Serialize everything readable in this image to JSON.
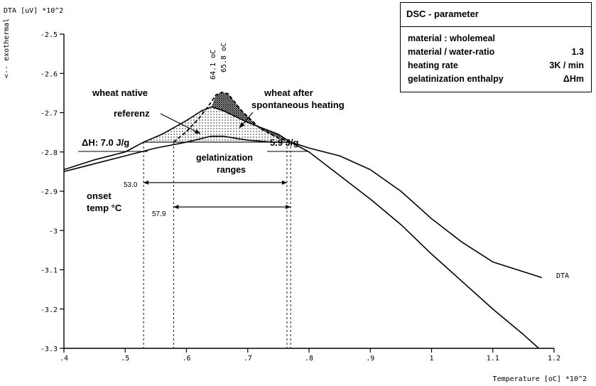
{
  "legend_box": {
    "title": "DSC - parameter",
    "rows": [
      {
        "label": "material : wholemeal",
        "value": ""
      },
      {
        "label": "material / water-ratio",
        "value": "1.3"
      },
      {
        "label": "heating rate",
        "value": "3K / min"
      },
      {
        "label": "gelatinization enthalpy",
        "value": "ΔHm"
      }
    ]
  },
  "annotations": {
    "wheat_native": "wheat native",
    "referenz": "referenz",
    "wheat_after_1": "wheat after",
    "wheat_after_2": "spontaneous heating",
    "dh_left": "ΔH: 7.0 J/g",
    "dh_right": "5.9 J/g",
    "gel_ranges_1": "gelatinization",
    "gel_ranges_2": "ranges",
    "onset_1": "onset",
    "onset_2": "temp °C",
    "onset_a": "53.0",
    "onset_b": "57.9",
    "peak_a": "64.1 oC",
    "peak_b": "65.8 oC",
    "series_label": "DTA"
  },
  "colors": {
    "line": "#000000",
    "background": "#ffffff"
  },
  "chart_data": {
    "type": "line",
    "title": "",
    "xlabel": "Temperature [oC] *10^2",
    "ylabel": "DTA [uV] *10^2",
    "ylabel_side": "<-- exothermal",
    "xlim": [
      0.4,
      1.2
    ],
    "ylim": [
      -3.3,
      -2.5
    ],
    "xticks": [
      0.4,
      0.5,
      0.6,
      0.7,
      0.8,
      0.9,
      1.0,
      1.1,
      1.2
    ],
    "xtick_labels": [
      ".4",
      ".5",
      ".6",
      ".7",
      ".8",
      ".9",
      "1",
      "1.1",
      "1.2"
    ],
    "yticks": [
      -2.5,
      -2.6,
      -2.7,
      -2.8,
      -2.9,
      -3.0,
      -3.1,
      -3.2,
      -3.3
    ],
    "ytick_labels": [
      "-2.5",
      "-2.6",
      "-2.7",
      "-2.8",
      "-2.9",
      "-3",
      "-3.1",
      "-3.2",
      "-3.3"
    ],
    "grid": false,
    "series": [
      {
        "name": "DTA",
        "x": [
          0.4,
          0.45,
          0.5,
          0.53,
          0.56,
          0.6,
          0.625,
          0.641,
          0.66,
          0.7,
          0.75,
          0.77,
          0.8,
          0.85,
          0.9,
          0.95,
          1.0,
          1.05,
          1.1,
          1.15,
          1.18
        ],
        "y": [
          -2.845,
          -2.82,
          -2.8,
          -2.775,
          -2.755,
          -2.72,
          -2.695,
          -2.685,
          -2.695,
          -2.725,
          -2.755,
          -2.775,
          -2.79,
          -2.81,
          -2.845,
          -2.9,
          -2.97,
          -3.03,
          -3.08,
          -3.105,
          -3.12
        ]
      },
      {
        "name": "",
        "x": [
          0.4,
          0.45,
          0.5,
          0.55,
          0.6,
          0.64,
          0.66,
          0.7,
          0.74,
          0.77,
          0.8,
          0.85,
          0.9,
          0.95,
          1.0,
          1.05,
          1.1,
          1.15,
          1.175
        ],
        "y": [
          -2.85,
          -2.83,
          -2.81,
          -2.79,
          -2.775,
          -2.76,
          -2.76,
          -2.77,
          -2.775,
          -2.775,
          -2.8,
          -2.86,
          -2.92,
          -2.985,
          -3.06,
          -3.13,
          -3.2,
          -3.265,
          -3.3
        ]
      },
      {
        "name": "",
        "x": [
          0.579,
          0.6,
          0.62,
          0.635,
          0.648,
          0.658,
          0.668,
          0.69,
          0.72,
          0.75,
          0.77
        ],
        "y": [
          -2.775,
          -2.748,
          -2.715,
          -2.685,
          -2.655,
          -2.648,
          -2.652,
          -2.695,
          -2.74,
          -2.765,
          -2.775
        ]
      }
    ]
  }
}
